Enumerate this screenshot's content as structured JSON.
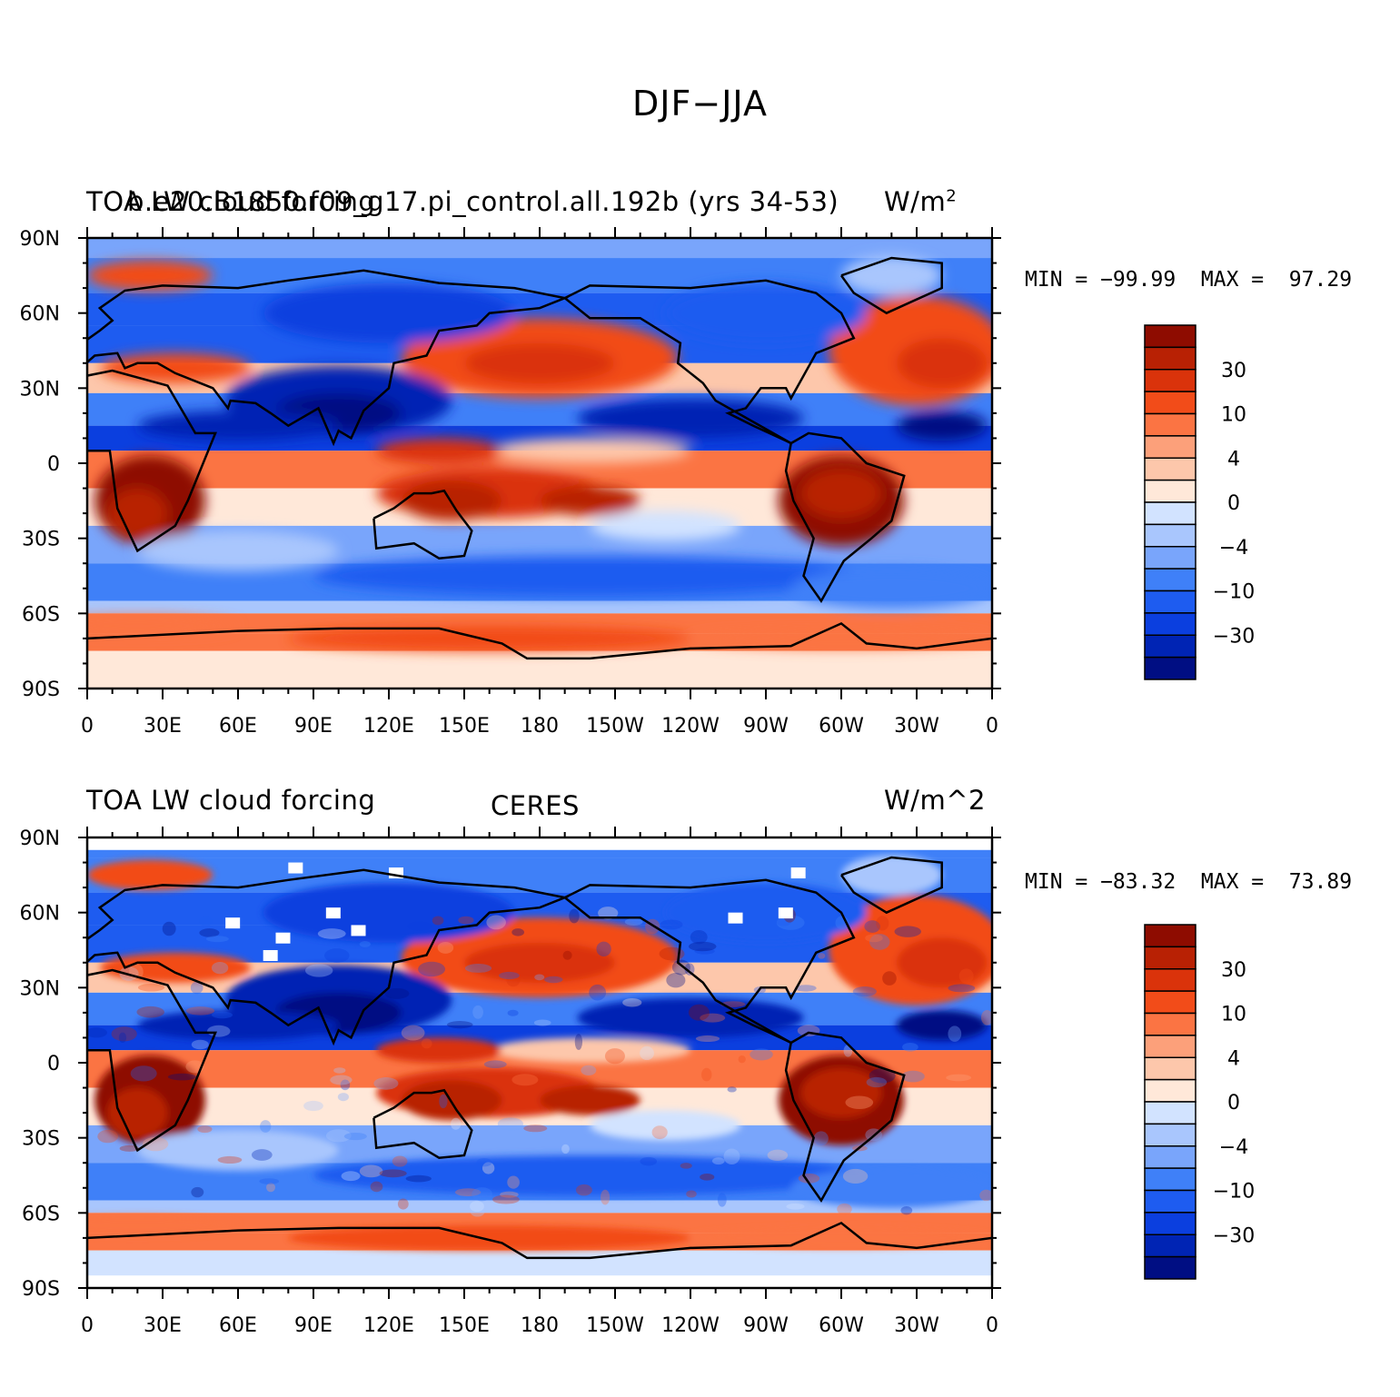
{
  "figure": {
    "title": "DJF−JJA"
  },
  "colors": {
    "levels": [
      "#000e83",
      "#0024b4",
      "#0b3fdf",
      "#1e5cf0",
      "#3f80f8",
      "#79a5fb",
      "#a9c6fd",
      "#d2e3ff",
      "#ffe8d9",
      "#fdc7ab",
      "#fca07a",
      "#fb7443",
      "#f24c19",
      "#da330b",
      "#b82104",
      "#8e0c00"
    ],
    "coast": "#000000"
  },
  "colorbar": {
    "tick_labels": [
      "30",
      "10",
      "4",
      "0",
      "−4",
      "−10",
      "−30"
    ]
  },
  "axes": {
    "lat_labels": [
      "90N",
      "60N",
      "30N",
      "0",
      "30S",
      "60S",
      "90S"
    ],
    "lon_labels": [
      "0",
      "30E",
      "60E",
      "90E",
      "120E",
      "150E",
      "180",
      "150W",
      "120W",
      "90W",
      "60W",
      "30W",
      "0"
    ]
  },
  "panels": [
    {
      "id": "model",
      "left_title": "TOA LW cloud forcing",
      "center_title": "b.e20.B1850.f09_g17.pi_control.all.192b (yrs 34-53)",
      "units": "W/m",
      "units_sup": "2",
      "min_text": "MIN = −99.99",
      "max_text": "MAX =  97.29",
      "chart_data": {
        "type": "heatmap",
        "variable": "TOA LW cloud forcing",
        "season": "DJF−JJA",
        "units": "W/m2",
        "min": -99.99,
        "max": 97.29,
        "lat_range": [
          -90,
          90
        ],
        "lon_range": [
          0,
          360
        ]
      }
    },
    {
      "id": "obs",
      "left_title": "TOA LW cloud forcing",
      "center_title": "CERES",
      "units": "W/m^2",
      "units_sup": "",
      "min_text": "MIN = −83.32",
      "max_text": "MAX =  73.89",
      "chart_data": {
        "type": "heatmap",
        "variable": "TOA LW cloud forcing",
        "dataset": "CERES",
        "season": "DJF−JJA",
        "units": "W/m^2",
        "min": -83.32,
        "max": 73.89,
        "lat_range": [
          -90,
          90
        ],
        "lon_range": [
          0,
          360
        ]
      }
    }
  ]
}
